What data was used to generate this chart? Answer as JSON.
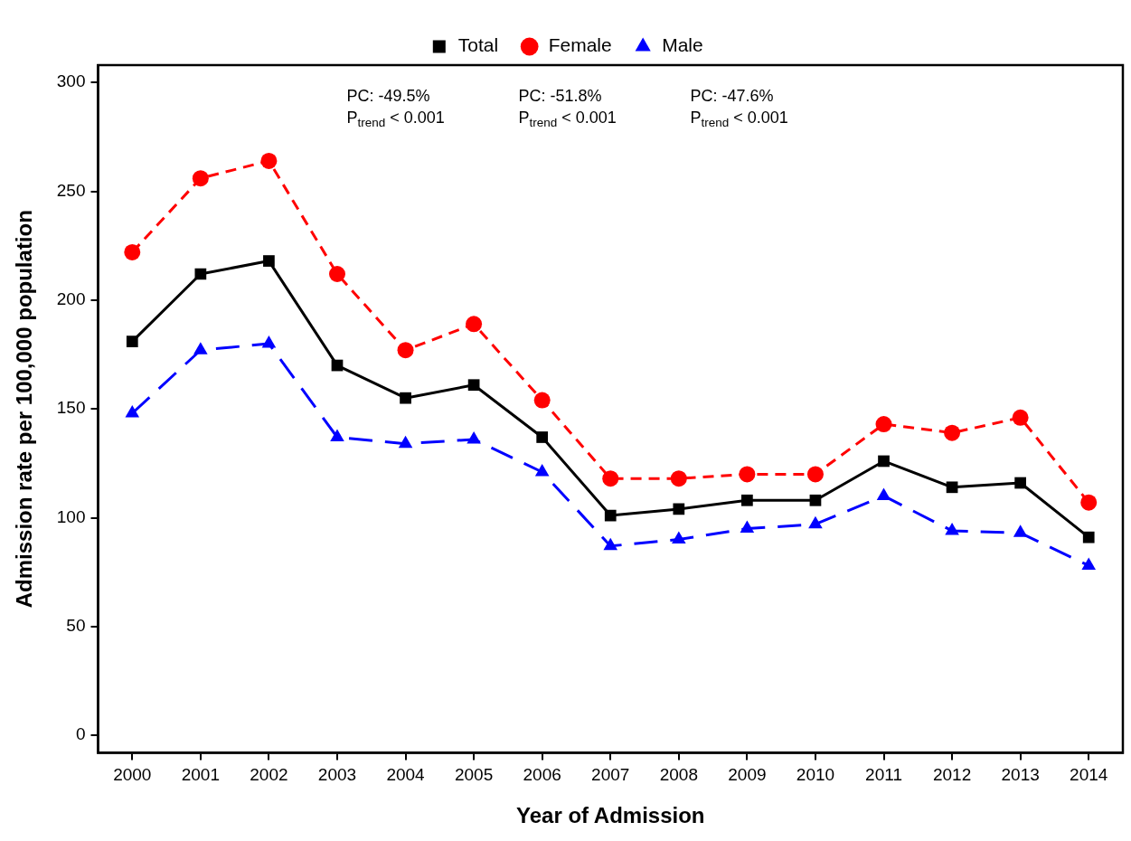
{
  "chart_data": {
    "type": "line",
    "xlabel": "Year of Admission",
    "ylabel": "Admission rate per 100,000 population",
    "categories": [
      "2000",
      "2001",
      "2002",
      "2003",
      "2004",
      "2005",
      "2006",
      "2007",
      "2008",
      "2009",
      "2010",
      "2011",
      "2012",
      "2013",
      "2014"
    ],
    "series": [
      {
        "name": "Total",
        "color": "#000000",
        "marker": "square",
        "line_style": "solid",
        "values": [
          181,
          212,
          218,
          170,
          155,
          161,
          137,
          101,
          104,
          108,
          108,
          126,
          114,
          116,
          91
        ]
      },
      {
        "name": "Female",
        "color": "#ff0000",
        "marker": "circle",
        "line_style": "dashed",
        "values": [
          222,
          256,
          264,
          212,
          177,
          189,
          154,
          118,
          118,
          120,
          120,
          143,
          139,
          146,
          107
        ]
      },
      {
        "name": "Male",
        "color": "#0000ff",
        "marker": "triangle",
        "line_style": "dashed",
        "values": [
          148,
          177,
          180,
          137,
          134,
          136,
          121,
          87,
          90,
          95,
          97,
          110,
          94,
          93,
          78
        ]
      }
    ],
    "ylim": [
      -8,
      308
    ],
    "yticks": [
      0,
      50,
      100,
      150,
      200,
      250,
      300
    ],
    "grid": false,
    "legend": "top",
    "annotations": [
      "PC: -49.5%\nP$_{trend}$ < 0.001",
      "PC: -51.8%\nP$_{trend}$ < 0.001",
      "PC: -47.6%\nP$_{trend}$ < 0.001"
    ]
  }
}
